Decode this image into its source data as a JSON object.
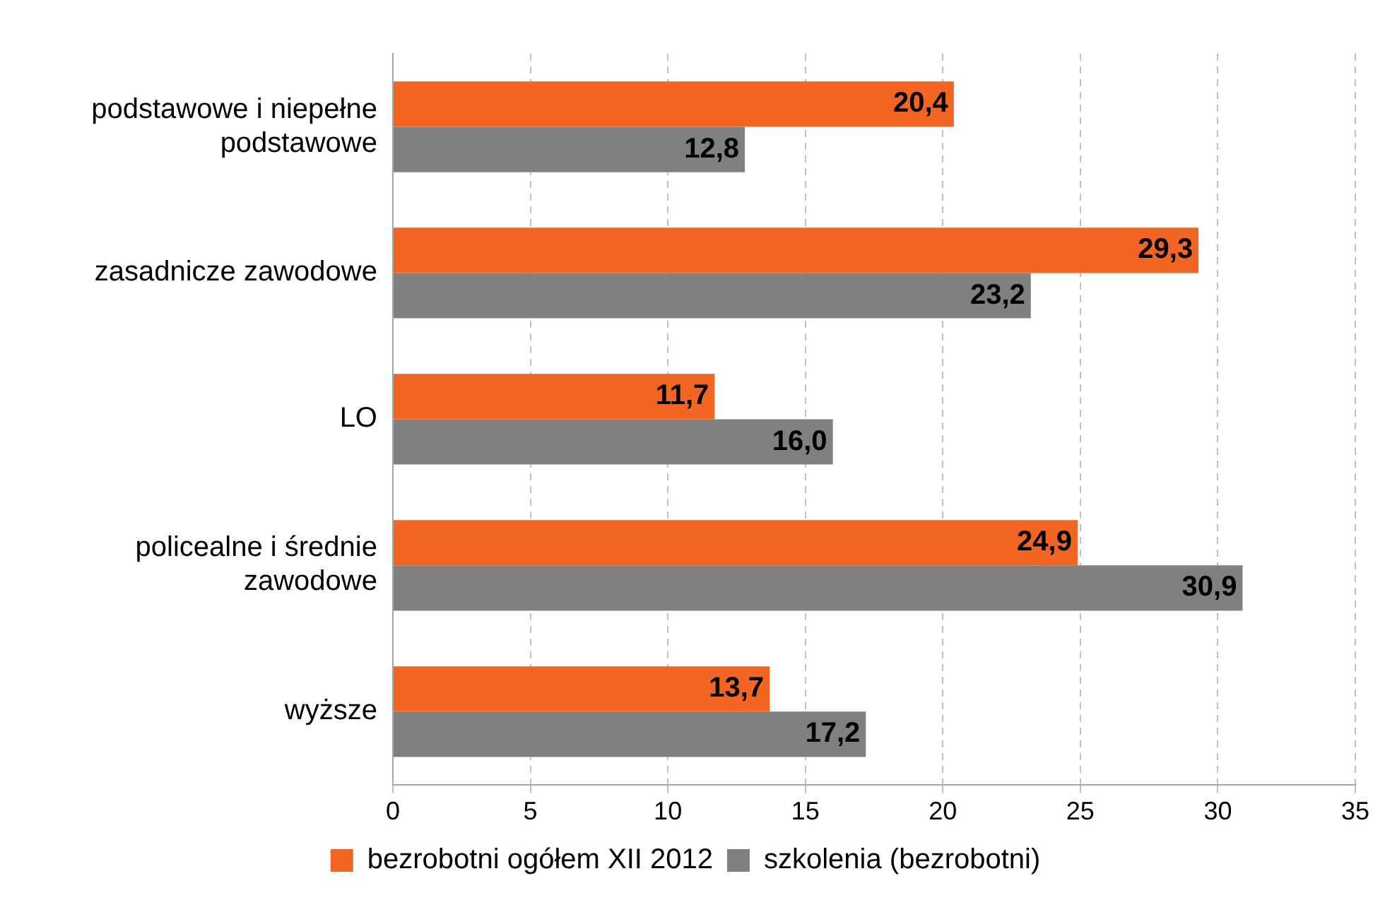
{
  "chart_data": {
    "type": "bar",
    "orientation": "horizontal",
    "categories": [
      "podstawowe i niepełne podstawowe",
      "zasadnicze zawodowe",
      "LO",
      "policealne i średnie zawodowe",
      "wyższe"
    ],
    "series": [
      {
        "name": "bezrobotni ogółem XII 2012",
        "color": "#f26522",
        "values": [
          20.4,
          29.3,
          11.7,
          24.9,
          13.7
        ],
        "value_labels": [
          "20,4",
          "29,3",
          "11,7",
          "24,9",
          "13,7"
        ]
      },
      {
        "name": "szkolenia (bezrobotni)",
        "color": "#808080",
        "values": [
          12.8,
          23.2,
          16.0,
          30.9,
          17.2
        ],
        "value_labels": [
          "12,8",
          "23,2",
          "16,0",
          "30,9",
          "17,2"
        ]
      }
    ],
    "xlim": [
      0,
      35
    ],
    "xticks": [
      0,
      5,
      10,
      15,
      20,
      25,
      30,
      35
    ],
    "grid": "x",
    "legend": "bottom"
  }
}
